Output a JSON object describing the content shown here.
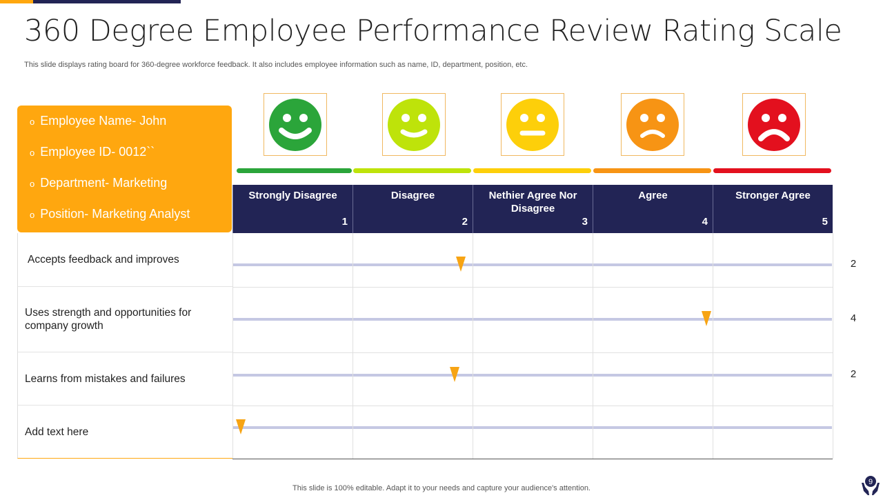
{
  "title": "360 Degree Employee Performance Review Rating Scale",
  "subtitle": "This slide displays rating board for 360-degree workforce feedback. It also includes employee information such as name, ID, department, position, etc.",
  "employee_info": [
    {
      "bullet": "o",
      "text": "Employee Name- John"
    },
    {
      "bullet": "o",
      "text": "Employee ID- 0012``"
    },
    {
      "bullet": "o",
      "text": "Department- Marketing"
    },
    {
      "bullet": "o",
      "text": "Position- Marketing Analyst"
    }
  ],
  "scale": [
    {
      "label": "Strongly Disagree",
      "number": "1",
      "face": "happy-face-icon",
      "color": "#2BA53A"
    },
    {
      "label": "Disagree",
      "number": "2",
      "face": "smile-face-icon",
      "color": "#BEE30A"
    },
    {
      "label": "Nethier Agree Nor Disagree",
      "number": "3",
      "face": "neutral-face-icon",
      "color": "#FDCF0A"
    },
    {
      "label": "Agree",
      "number": "4",
      "face": "sad-face-icon",
      "color": "#F79414"
    },
    {
      "label": "Stronger Agree",
      "number": "5",
      "face": "frown-face-icon",
      "color": "#E3101E"
    }
  ],
  "criteria": [
    {
      "label": "Accepts feedback and improves",
      "score": "2",
      "marker_position": 1.9
    },
    {
      "label": "Uses strength and opportunities  for company growth",
      "score": "4",
      "marker_position": 3.95
    },
    {
      "label": "Learns  from mistakes and failures",
      "score": "2",
      "marker_position": 1.85
    },
    {
      "label": "Add text here",
      "score": "",
      "marker_position": 0.07
    }
  ],
  "footer": "This slide is 100% editable. Adapt it to your needs and capture your audience's attention.",
  "page_number": "9",
  "colors": {
    "accent": "#FFA70F",
    "navy": "#222455",
    "track": "#C5C8E3",
    "marker": "#F7A414"
  }
}
